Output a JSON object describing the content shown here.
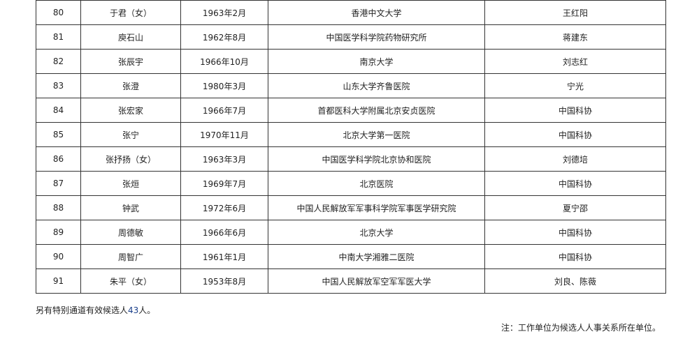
{
  "rows": [
    {
      "no": "80",
      "name": "于君（女）",
      "birth": "1963年2月",
      "unit": "香港中文大学",
      "nominator": "王红阳"
    },
    {
      "no": "81",
      "name": "庾石山",
      "birth": "1962年8月",
      "unit": "中国医学科学院药物研究所",
      "nominator": "蒋建东"
    },
    {
      "no": "82",
      "name": "张辰宇",
      "birth": "1966年10月",
      "unit": "南京大学",
      "nominator": "刘志红"
    },
    {
      "no": "83",
      "name": "张澄",
      "birth": "1980年3月",
      "unit": "山东大学齐鲁医院",
      "nominator": "宁光"
    },
    {
      "no": "84",
      "name": "张宏家",
      "birth": "1966年7月",
      "unit": "首都医科大学附属北京安贞医院",
      "nominator": "中国科协"
    },
    {
      "no": "85",
      "name": "张宁",
      "birth": "1970年11月",
      "unit": "北京大学第一医院",
      "nominator": "中国科协"
    },
    {
      "no": "86",
      "name": "张抒扬（女）",
      "birth": "1963年3月",
      "unit": "中国医学科学院北京协和医院",
      "nominator": "刘德培"
    },
    {
      "no": "87",
      "name": "张烜",
      "birth": "1969年7月",
      "unit": "北京医院",
      "nominator": "中国科协"
    },
    {
      "no": "88",
      "name": "钟武",
      "birth": "1972年6月",
      "unit": "中国人民解放军军事科学院军事医学研究院",
      "nominator": "夏宁邵"
    },
    {
      "no": "89",
      "name": "周德敏",
      "birth": "1966年6月",
      "unit": "北京大学",
      "nominator": "中国科协"
    },
    {
      "no": "90",
      "name": "周智广",
      "birth": "1961年1月",
      "unit": "中南大学湘雅二医院",
      "nominator": "中国科协"
    },
    {
      "no": "91",
      "name": "朱平（女）",
      "birth": "1953年8月",
      "unit": "中国人民解放军空军军医大学",
      "nominator": "刘良、陈薇"
    }
  ],
  "footer": {
    "prefix": "另有特别通道有效候选人",
    "count": "43",
    "suffix": "人。"
  },
  "note": "注：工作单位为候选人人事关系所在单位。"
}
